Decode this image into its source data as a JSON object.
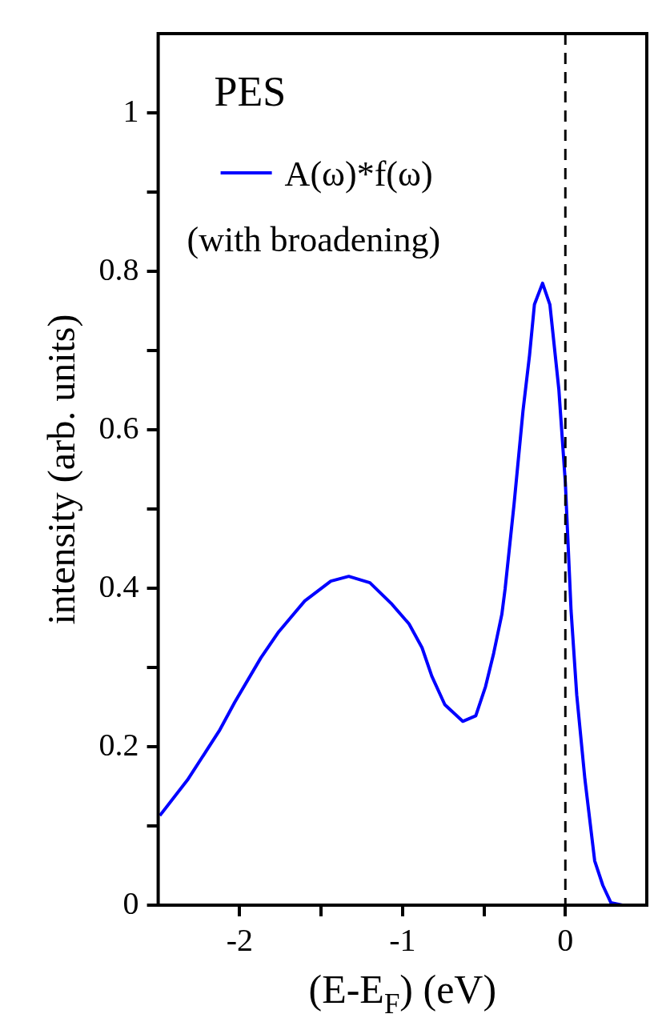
{
  "chart_data": {
    "type": "line",
    "xlabel": "(E-E$_{F}$) (eV)",
    "ylabel": "intensity (arb. units)",
    "legend_title": "PES",
    "legend": "top left",
    "annotations": [
      "(with broadening)"
    ],
    "x": [
      -2.49,
      -2.32,
      -2.125,
      -2.03,
      -1.87,
      -1.76,
      -1.6,
      -1.44,
      -1.33,
      -1.2,
      -1.07,
      -0.96,
      -0.88,
      -0.82,
      -0.74,
      -0.63,
      -0.55,
      -0.49,
      -0.44,
      -0.39,
      -0.37,
      -0.315,
      -0.26,
      -0.22,
      -0.19,
      -0.14,
      -0.095,
      -0.04,
      0,
      0.035,
      0.07,
      0.12,
      0.18,
      0.23,
      0.28,
      0.35
    ],
    "series": [
      {
        "name": "A(ω)*f(ω)",
        "color": "#0000ff",
        "values": [
          0.113,
          0.158,
          0.22,
          0.256,
          0.312,
          0.345,
          0.384,
          0.409,
          0.415,
          0.407,
          0.381,
          0.355,
          0.325,
          0.289,
          0.253,
          0.232,
          0.239,
          0.276,
          0.318,
          0.367,
          0.399,
          0.506,
          0.624,
          0.694,
          0.758,
          0.785,
          0.758,
          0.651,
          0.533,
          0.372,
          0.265,
          0.159,
          0.056,
          0.025,
          0.003,
          0
        ]
      }
    ],
    "xlim": [
      -2.5,
      0.5
    ],
    "xticks": [
      -2,
      {
        "value": -1.5,
        "label": null
      },
      -1,
      {
        "value": -0.5,
        "label": null
      },
      0
    ],
    "ylim": [
      0,
      1.1
    ],
    "yticks": [
      0,
      {
        "value": 0.1,
        "label": null
      },
      0.2,
      {
        "value": 0.3,
        "label": null
      },
      0.4,
      {
        "value": 0.5,
        "label": null
      },
      0.6,
      {
        "value": 0.7,
        "label": null
      },
      0.8,
      {
        "value": 0.9,
        "label": null
      },
      1
    ],
    "ref_lines": [
      {
        "axis": "x",
        "value": 0,
        "color": "#000000",
        "line_style": "dashed"
      }
    ],
    "grid": false,
    "marker": "none",
    "line_style": "solid"
  }
}
